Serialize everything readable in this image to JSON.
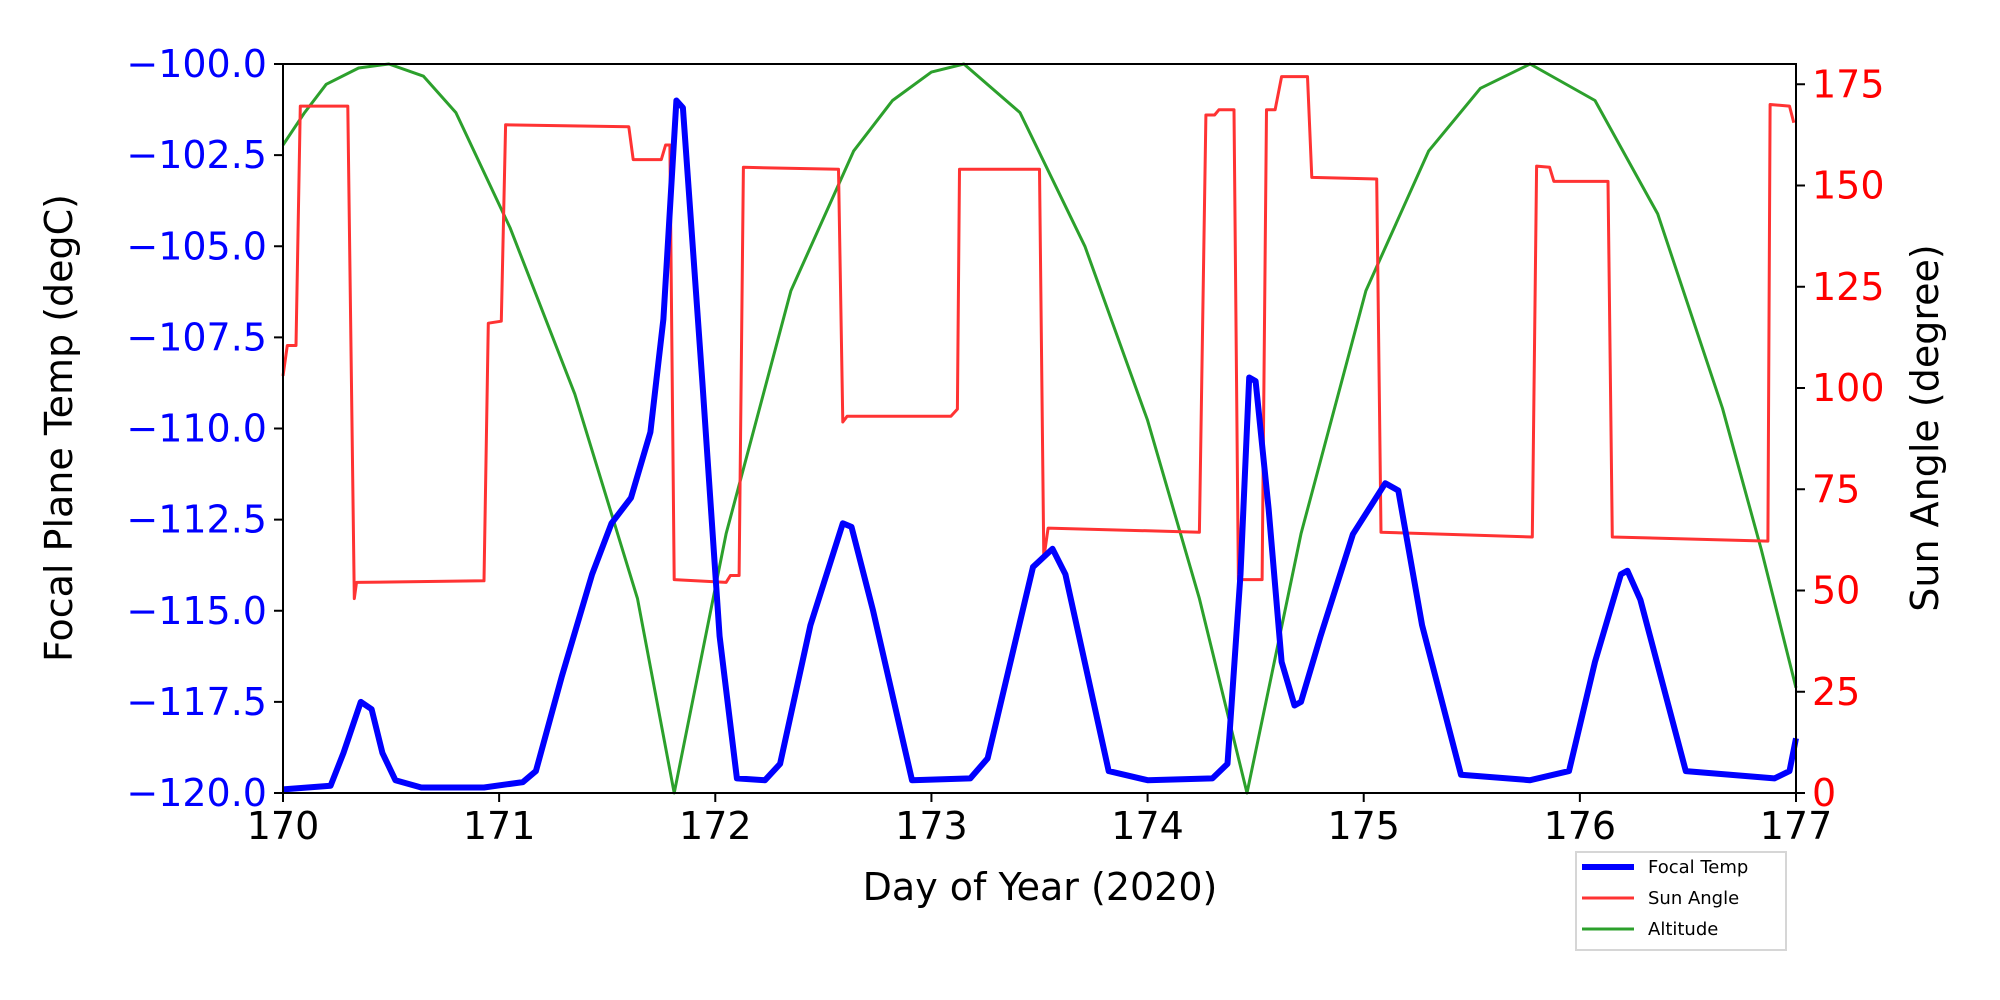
{
  "chart_data": {
    "type": "line",
    "xlabel": "Day of Year (2020)",
    "ylabel_left": "Focal Plane Temp (degC)",
    "ylabel_right": "Sun Angle (degree)",
    "xlim": [
      170,
      177
    ],
    "ylim_left": [
      -120,
      -100
    ],
    "ylim_right": [
      0,
      180
    ],
    "x_ticks": [
      "170",
      "171",
      "172",
      "173",
      "174",
      "175",
      "176",
      "177"
    ],
    "y_left_ticks": [
      "−100.0",
      "−102.5",
      "−105.0",
      "−107.5",
      "−110.0",
      "−112.5",
      "−115.0",
      "−117.5",
      "−120.0"
    ],
    "y_right_ticks": [
      "0",
      "25",
      "50",
      "75",
      "100",
      "125",
      "150",
      "175"
    ],
    "grid": false,
    "legend_position": "bottom-right, below axes",
    "colors": {
      "left_axis": "#0000ff",
      "right_axis": "#ff0000"
    },
    "series": [
      {
        "name": "Focal Temp",
        "axis": "left",
        "color": "#0000ff",
        "x": [
          170.0,
          170.22,
          170.28,
          170.36,
          170.41,
          170.46,
          170.52,
          170.64,
          170.93,
          171.11,
          171.17,
          171.29,
          171.43,
          171.52,
          171.61,
          171.7,
          171.76,
          171.82,
          171.85,
          171.94,
          172.02,
          172.1,
          172.23,
          172.3,
          172.44,
          172.59,
          172.63,
          172.73,
          172.91,
          173.18,
          173.26,
          173.47,
          173.56,
          173.62,
          173.82,
          174.0,
          174.3,
          174.37,
          174.43,
          174.47,
          174.5,
          174.56,
          174.62,
          174.68,
          174.71,
          174.8,
          174.95,
          175.1,
          175.16,
          175.27,
          175.45,
          175.77,
          175.95,
          176.07,
          176.19,
          176.22,
          176.28,
          176.49,
          176.9,
          176.97,
          177.0
        ],
        "y": [
          -119.9,
          -119.8,
          -118.9,
          -117.5,
          -117.7,
          -118.9,
          -119.65,
          -119.85,
          -119.85,
          -119.7,
          -119.4,
          -116.8,
          -114.0,
          -112.6,
          -111.9,
          -110.1,
          -107.0,
          -101.0,
          -101.2,
          -108.7,
          -115.7,
          -119.6,
          -119.65,
          -119.2,
          -115.4,
          -112.6,
          -112.7,
          -115.0,
          -119.65,
          -119.6,
          -119.05,
          -113.8,
          -113.3,
          -114.0,
          -119.4,
          -119.65,
          -119.6,
          -119.2,
          -114.0,
          -108.6,
          -108.7,
          -112.2,
          -116.4,
          -117.6,
          -117.5,
          -115.7,
          -112.9,
          -111.5,
          -111.7,
          -115.4,
          -119.5,
          -119.65,
          -119.4,
          -116.4,
          -114.0,
          -113.9,
          -114.7,
          -119.4,
          -119.6,
          -119.4,
          -118.5
        ]
      },
      {
        "name": "Sun Angle",
        "axis": "right",
        "color": "#ff3333",
        "x": [
          170.0,
          170.02,
          170.06,
          170.08,
          170.3,
          170.33,
          170.34,
          170.93,
          170.95,
          171.01,
          171.03,
          171.6,
          171.62,
          171.75,
          171.77,
          171.79,
          171.81,
          172.05,
          172.07,
          172.11,
          172.13,
          172.57,
          172.59,
          172.61,
          173.09,
          173.12,
          173.13,
          173.5,
          173.52,
          173.54,
          174.24,
          174.27,
          174.31,
          174.33,
          174.4,
          174.42,
          174.53,
          174.55,
          174.59,
          174.62,
          174.74,
          174.76,
          175.06,
          175.08,
          175.78,
          175.8,
          175.86,
          175.88,
          176.13,
          176.15,
          176.87,
          176.88,
          176.97,
          176.99
        ],
        "y": [
          103,
          110.5,
          110.5,
          169.6,
          169.6,
          48,
          52,
          52.4,
          116,
          116.5,
          165,
          164.5,
          156.4,
          156.4,
          160,
          160,
          52.7,
          52,
          53.7,
          53.7,
          154.5,
          154,
          91.6,
          93,
          93,
          94.8,
          154,
          154,
          58,
          65.4,
          64.4,
          167.4,
          167.4,
          168.7,
          168.7,
          52.7,
          52.7,
          168.7,
          168.7,
          176.9,
          176.9,
          152,
          151.6,
          64.4,
          63.2,
          154.8,
          154.5,
          151,
          151,
          63.2,
          62.2,
          170,
          169.6,
          165.5
        ]
      },
      {
        "name": "Altitude",
        "axis": "right",
        "color": "#2ca02c",
        "x": [
          170.0,
          170.1,
          170.2,
          170.35,
          170.49,
          170.65,
          170.8,
          171.05,
          171.35,
          171.64,
          171.81,
          172.05,
          172.35,
          172.64,
          172.82,
          173.0,
          173.15,
          173.41,
          173.71,
          174.0,
          174.24,
          174.46,
          174.71,
          175.01,
          175.3,
          175.54,
          175.77,
          176.07,
          176.36,
          176.66,
          176.84,
          177.0
        ],
        "y": [
          160,
          168,
          175,
          179,
          180,
          177,
          168,
          139.6,
          98.5,
          48,
          0,
          64,
          124,
          158.5,
          171,
          178,
          180,
          168,
          135,
          92,
          48,
          0,
          64,
          124,
          158.5,
          174,
          180,
          171,
          143,
          95,
          60,
          26
        ]
      }
    ]
  }
}
